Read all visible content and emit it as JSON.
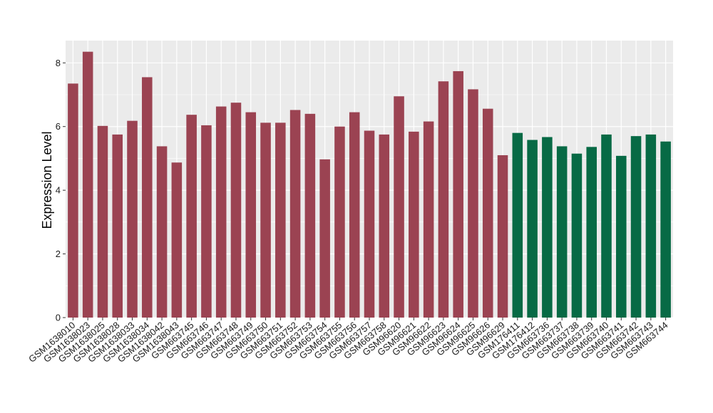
{
  "chart_data": {
    "type": "bar",
    "title": "",
    "xlabel": "",
    "ylabel": "Expression Level",
    "ylim": [
      0,
      8.7
    ],
    "yticks": [
      0,
      2,
      4,
      6,
      8
    ],
    "grid": true,
    "colors": {
      "group_a": "#9B4352",
      "group_b": "#076A45",
      "panel": "#EBEBEB",
      "grid": "#FFFFFF"
    },
    "categories": [
      "GSM1638010",
      "GSM1638023",
      "GSM1638025",
      "GSM1638028",
      "GSM1638033",
      "GSM1638034",
      "GSM1638042",
      "GSM1638043",
      "GSM663745",
      "GSM663746",
      "GSM663747",
      "GSM663748",
      "GSM663749",
      "GSM663750",
      "GSM663751",
      "GSM663752",
      "GSM663753",
      "GSM663754",
      "GSM663755",
      "GSM663756",
      "GSM663757",
      "GSM663758",
      "GSM96620",
      "GSM96621",
      "GSM96622",
      "GSM96623",
      "GSM96624",
      "GSM96625",
      "GSM96626",
      "GSM96629",
      "GSM176411",
      "GSM176412",
      "GSM663736",
      "GSM663737",
      "GSM663738",
      "GSM663739",
      "GSM663740",
      "GSM663741",
      "GSM663742",
      "GSM663743",
      "GSM663744"
    ],
    "values": [
      7.35,
      8.35,
      6.02,
      5.75,
      6.18,
      7.55,
      5.38,
      4.87,
      6.37,
      6.04,
      6.63,
      6.75,
      6.45,
      6.12,
      6.12,
      6.52,
      6.4,
      4.97,
      6.0,
      6.45,
      5.87,
      5.75,
      6.95,
      5.84,
      6.16,
      7.42,
      7.74,
      7.17,
      6.56,
      5.1,
      5.8,
      5.58,
      5.67,
      5.38,
      5.15,
      5.36,
      5.75,
      5.08,
      5.7,
      5.75,
      5.53
    ],
    "groups": [
      "a",
      "a",
      "a",
      "a",
      "a",
      "a",
      "a",
      "a",
      "a",
      "a",
      "a",
      "a",
      "a",
      "a",
      "a",
      "a",
      "a",
      "a",
      "a",
      "a",
      "a",
      "a",
      "a",
      "a",
      "a",
      "a",
      "a",
      "a",
      "a",
      "a",
      "b",
      "b",
      "b",
      "b",
      "b",
      "b",
      "b",
      "b",
      "b",
      "b",
      "b"
    ]
  }
}
